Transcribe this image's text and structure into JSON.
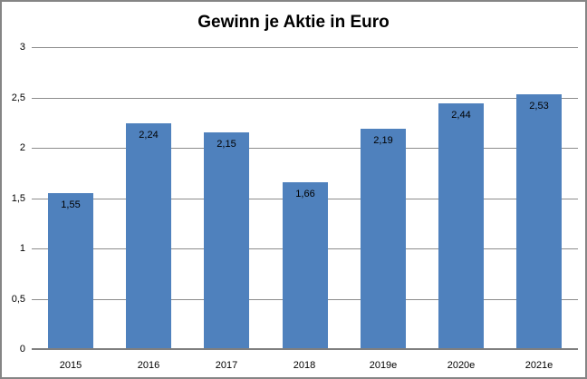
{
  "chart_data": {
    "type": "bar",
    "title": "Gewinn je Aktie in Euro",
    "categories": [
      "2015",
      "2016",
      "2017",
      "2018",
      "2019e",
      "2020e",
      "2021e"
    ],
    "values": [
      1.55,
      2.24,
      2.15,
      1.66,
      2.19,
      2.44,
      2.53
    ],
    "value_labels": [
      "1,55",
      "2,24",
      "2,15",
      "1,66",
      "2,19",
      "2,44",
      "2,53"
    ],
    "xlabel": "",
    "ylabel": "",
    "ylim": [
      0,
      3
    ],
    "y_ticks": [
      0,
      0.5,
      1,
      1.5,
      2,
      2.5,
      3
    ],
    "y_tick_labels": [
      "0",
      "0,5",
      "1",
      "1,5",
      "2",
      "2,5",
      "3"
    ],
    "grid": true,
    "legend": false,
    "value_label_position": "inside-end",
    "colors": {
      "bar": "#4F81BD",
      "gridline": "#8C8C8C",
      "axis": "#7F7F7F",
      "text": "#000000",
      "border": "#858585",
      "background": "#FFFFFF"
    }
  }
}
